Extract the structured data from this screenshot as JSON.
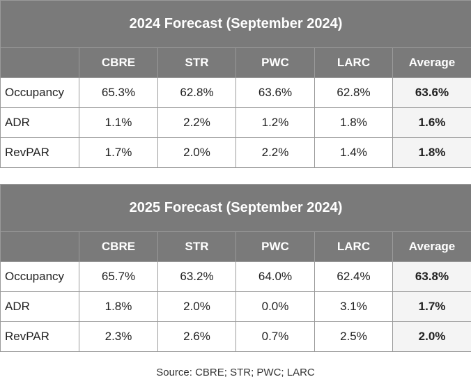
{
  "tables": [
    {
      "title": "2024 Forecast (September 2024)",
      "columns": [
        "",
        "CBRE",
        "STR",
        "PWC",
        "LARC",
        "Average"
      ],
      "rows": [
        {
          "label": "Occupancy",
          "values": [
            "65.3%",
            "62.8%",
            "63.6%",
            "62.8%"
          ],
          "average": "63.6%"
        },
        {
          "label": "ADR",
          "values": [
            "1.1%",
            "2.2%",
            "1.2%",
            "1.8%"
          ],
          "average": "1.6%"
        },
        {
          "label": "RevPAR",
          "values": [
            "1.7%",
            "2.0%",
            "2.2%",
            "1.4%"
          ],
          "average": "1.8%"
        }
      ]
    },
    {
      "title": "2025 Forecast (September 2024)",
      "columns": [
        "",
        "CBRE",
        "STR",
        "PWC",
        "LARC",
        "Average"
      ],
      "rows": [
        {
          "label": "Occupancy",
          "values": [
            "65.7%",
            "63.2%",
            "64.0%",
            "62.4%"
          ],
          "average": "63.8%"
        },
        {
          "label": "ADR",
          "values": [
            "1.8%",
            "2.0%",
            "0.0%",
            "3.1%"
          ],
          "average": "1.7%"
        },
        {
          "label": "RevPAR",
          "values": [
            "2.3%",
            "2.6%",
            "0.7%",
            "2.5%"
          ],
          "average": "2.0%"
        }
      ]
    }
  ],
  "source": "Source: CBRE; STR; PWC; LARC",
  "colors": {
    "header_bg": "#7a7a7a",
    "header_text": "#ffffff",
    "average_bg": "#f4f4f4",
    "border": "#9a9a9a"
  }
}
